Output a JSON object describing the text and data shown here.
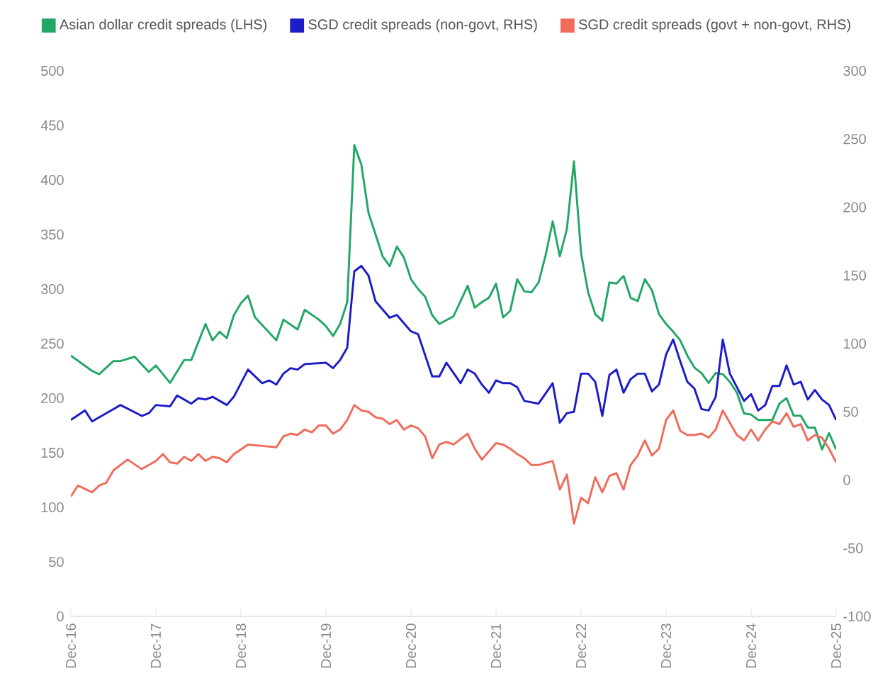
{
  "chart_data": {
    "type": "line",
    "legend": "top left",
    "xlim": [
      "2016-12",
      "2025-12"
    ],
    "xticks": [
      {
        "value": "2016-12",
        "label": "Dec-16"
      },
      {
        "value": "2017-12",
        "label": "Dec-17"
      },
      {
        "value": "2018-12",
        "label": "Dec-18"
      },
      {
        "value": "2019-12",
        "label": "Dec-19"
      },
      {
        "value": "2020-12",
        "label": "Dec-20"
      },
      {
        "value": "2021-12",
        "label": "Dec-21"
      },
      {
        "value": "2022-12",
        "label": "Dec-22"
      },
      {
        "value": "2023-12",
        "label": "Dec-23"
      },
      {
        "value": "2024-12",
        "label": "Dec-24"
      },
      {
        "value": "2025-12",
        "label": "Dec-25"
      }
    ],
    "ylim": [
      0,
      500
    ],
    "yticks": [
      0,
      50,
      100,
      150,
      200,
      250,
      300,
      350,
      400,
      450,
      500
    ],
    "y2lim": [
      -100,
      300
    ],
    "y2ticks": [
      -100,
      -50,
      0,
      50,
      100,
      150,
      200,
      250,
      300
    ],
    "series": [
      {
        "name": "Asian dollar credit spreads (LHS)",
        "color": "#21a765",
        "x": [
          "2016-12",
          "2017-03",
          "2017-04",
          "2017-06",
          "2017-07",
          "2017-09",
          "2017-11",
          "2017-12",
          "2018-02",
          "2018-04",
          "2018-05",
          "2018-07",
          "2018-08",
          "2018-09",
          "2018-10",
          "2018-11",
          "2018-12",
          "2019-01",
          "2019-02",
          "2019-05",
          "2019-06",
          "2019-08",
          "2019-09",
          "2019-11",
          "2019-12",
          "2020-01",
          "2020-02",
          "2020-03",
          "2020-04",
          "2020-05",
          "2020-06",
          "2020-08",
          "2020-09",
          "2020-10",
          "2020-11",
          "2020-12",
          "2021-01",
          "2021-02",
          "2021-03",
          "2021-04",
          "2021-06",
          "2021-08",
          "2021-09",
          "2021-10",
          "2021-11",
          "2021-12",
          "2022-01",
          "2022-02",
          "2022-03",
          "2022-04",
          "2022-05",
          "2022-06",
          "2022-07",
          "2022-08",
          "2022-09",
          "2022-10",
          "2022-11",
          "2022-12",
          "2023-01",
          "2023-02",
          "2023-03",
          "2023-04",
          "2023-05",
          "2023-06",
          "2023-07",
          "2023-08",
          "2023-09",
          "2023-10",
          "2023-11",
          "2023-12",
          "2024-01",
          "2024-02",
          "2024-03",
          "2024-04",
          "2024-05",
          "2024-06",
          "2024-07",
          "2024-08",
          "2024-09",
          "2024-10",
          "2024-11",
          "2024-12",
          "2025-01",
          "2025-02",
          "2025-03",
          "2025-04",
          "2025-05",
          "2025-06",
          "2025-07",
          "2025-08",
          "2025-09",
          "2025-10",
          "2025-11",
          "2025-12"
        ],
        "values": [
          239,
          225,
          222,
          234,
          234,
          238,
          224,
          230,
          214,
          235,
          235,
          268,
          253,
          261,
          255,
          276,
          287,
          294,
          274,
          253,
          272,
          263,
          281,
          272,
          266,
          257,
          268,
          288,
          432,
          414,
          370,
          330,
          321,
          339,
          329,
          309,
          300,
          293,
          276,
          268,
          275,
          303,
          283,
          288,
          292,
          305,
          274,
          280,
          309,
          298,
          297,
          306,
          331,
          362,
          330,
          355,
          417,
          333,
          297,
          277,
          271,
          306,
          305,
          312,
          292,
          289,
          309,
          299,
          277,
          268,
          261,
          253,
          239,
          228,
          223,
          214,
          223,
          222,
          215,
          205,
          186,
          185,
          180,
          180,
          180,
          195,
          200,
          184,
          184,
          173,
          173,
          153,
          168,
          153
        ]
      },
      {
        "name": "SGD credit spreads (non-govt, RHS)",
        "color": "#1c1cc8",
        "axis": "y2",
        "x": [
          "2016-12",
          "2017-02",
          "2017-03",
          "2017-06",
          "2017-07",
          "2017-10",
          "2017-11",
          "2017-12",
          "2018-02",
          "2018-03",
          "2018-05",
          "2018-06",
          "2018-07",
          "2018-08",
          "2018-10",
          "2018-11",
          "2019-01",
          "2019-03",
          "2019-04",
          "2019-05",
          "2019-06",
          "2019-07",
          "2019-08",
          "2019-09",
          "2019-12",
          "2020-01",
          "2020-02",
          "2020-03",
          "2020-04",
          "2020-05",
          "2020-06",
          "2020-07",
          "2020-09",
          "2020-10",
          "2020-12",
          "2021-01",
          "2021-03",
          "2021-04",
          "2021-05",
          "2021-07",
          "2021-08",
          "2021-09",
          "2021-10",
          "2021-11",
          "2021-12",
          "2022-01",
          "2022-02",
          "2022-03",
          "2022-04",
          "2022-06",
          "2022-08",
          "2022-09",
          "2022-10",
          "2022-11",
          "2022-12",
          "2023-01",
          "2023-02",
          "2023-03",
          "2023-04",
          "2023-05",
          "2023-06",
          "2023-07",
          "2023-08",
          "2023-09",
          "2023-10",
          "2023-11",
          "2023-12",
          "2024-01",
          "2024-02",
          "2024-03",
          "2024-04",
          "2024-05",
          "2024-06",
          "2024-07",
          "2024-08",
          "2024-09",
          "2024-10",
          "2024-11",
          "2024-12",
          "2025-01",
          "2025-02",
          "2025-03",
          "2025-04",
          "2025-05",
          "2025-06",
          "2025-07",
          "2025-08",
          "2025-09",
          "2025-10",
          "2025-11",
          "2025-12"
        ],
        "values": [
          44,
          51,
          43,
          52,
          55,
          47,
          49,
          55,
          54,
          62,
          56,
          60,
          59,
          61,
          55,
          61,
          81,
          71,
          73,
          70,
          78,
          82,
          81,
          85,
          86,
          82,
          88,
          97,
          153,
          157,
          150,
          131,
          119,
          121,
          109,
          107,
          76,
          76,
          86,
          71,
          81,
          78,
          70,
          64,
          73,
          71,
          71,
          68,
          58,
          56,
          71,
          42,
          49,
          50,
          78,
          78,
          72,
          47,
          77,
          81,
          64,
          74,
          78,
          78,
          65,
          70,
          92,
          103,
          87,
          72,
          67,
          52,
          51,
          61,
          103,
          78,
          68,
          58,
          63,
          51,
          55,
          69,
          69,
          84,
          70,
          72,
          59,
          66,
          59,
          55,
          44
        ]
      },
      {
        "name": "SGD credit spreads (govt + non-govt, RHS)",
        "color": "#ef6b5a",
        "axis": "y2",
        "x": [
          "2016-12",
          "2017-01",
          "2017-03",
          "2017-04",
          "2017-05",
          "2017-06",
          "2017-08",
          "2017-10",
          "2017-12",
          "2018-01",
          "2018-02",
          "2018-03",
          "2018-04",
          "2018-05",
          "2018-06",
          "2018-07",
          "2018-08",
          "2018-09",
          "2018-10",
          "2018-11",
          "2019-01",
          "2019-03",
          "2019-05",
          "2019-06",
          "2019-07",
          "2019-08",
          "2019-09",
          "2019-10",
          "2019-11",
          "2019-12",
          "2020-01",
          "2020-02",
          "2020-03",
          "2020-04",
          "2020-05",
          "2020-06",
          "2020-07",
          "2020-08",
          "2020-09",
          "2020-10",
          "2020-11",
          "2020-12",
          "2021-01",
          "2021-02",
          "2021-03",
          "2021-04",
          "2021-05",
          "2021-06",
          "2021-08",
          "2021-09",
          "2021-10",
          "2021-11",
          "2021-12",
          "2022-01",
          "2022-02",
          "2022-03",
          "2022-04",
          "2022-05",
          "2022-06",
          "2022-08",
          "2022-09",
          "2022-10",
          "2022-11",
          "2022-12",
          "2023-01",
          "2023-02",
          "2023-03",
          "2023-04",
          "2023-05",
          "2023-06",
          "2023-07",
          "2023-08",
          "2023-09",
          "2023-10",
          "2023-11",
          "2023-12",
          "2024-01",
          "2024-02",
          "2024-03",
          "2024-04",
          "2024-05",
          "2024-06",
          "2024-07",
          "2024-08",
          "2024-09",
          "2024-10",
          "2024-11",
          "2024-12",
          "2025-01",
          "2025-02",
          "2025-03",
          "2025-04",
          "2025-05",
          "2025-06",
          "2025-07",
          "2025-08",
          "2025-09",
          "2025-10",
          "2025-11",
          "2025-12"
        ],
        "values": [
          -12,
          -4,
          -9,
          -4,
          -2,
          7,
          15,
          8,
          14,
          19,
          13,
          12,
          17,
          14,
          19,
          14,
          17,
          16,
          13,
          19,
          26,
          25,
          24,
          32,
          34,
          33,
          37,
          35,
          40,
          40,
          34,
          37,
          44,
          55,
          51,
          50,
          46,
          45,
          41,
          44,
          37,
          40,
          38,
          32,
          16,
          26,
          28,
          26,
          34,
          23,
          15,
          21,
          27,
          26,
          23,
          19,
          16,
          11,
          11,
          14,
          -7,
          4,
          -32,
          -13,
          -17,
          2,
          -9,
          3,
          5,
          -7,
          11,
          18,
          29,
          18,
          23,
          44,
          51,
          36,
          33,
          33,
          34,
          31,
          37,
          51,
          42,
          33,
          29,
          37,
          29,
          37,
          43,
          41,
          49,
          39,
          41,
          29,
          33,
          31,
          23,
          13
        ]
      }
    ]
  }
}
